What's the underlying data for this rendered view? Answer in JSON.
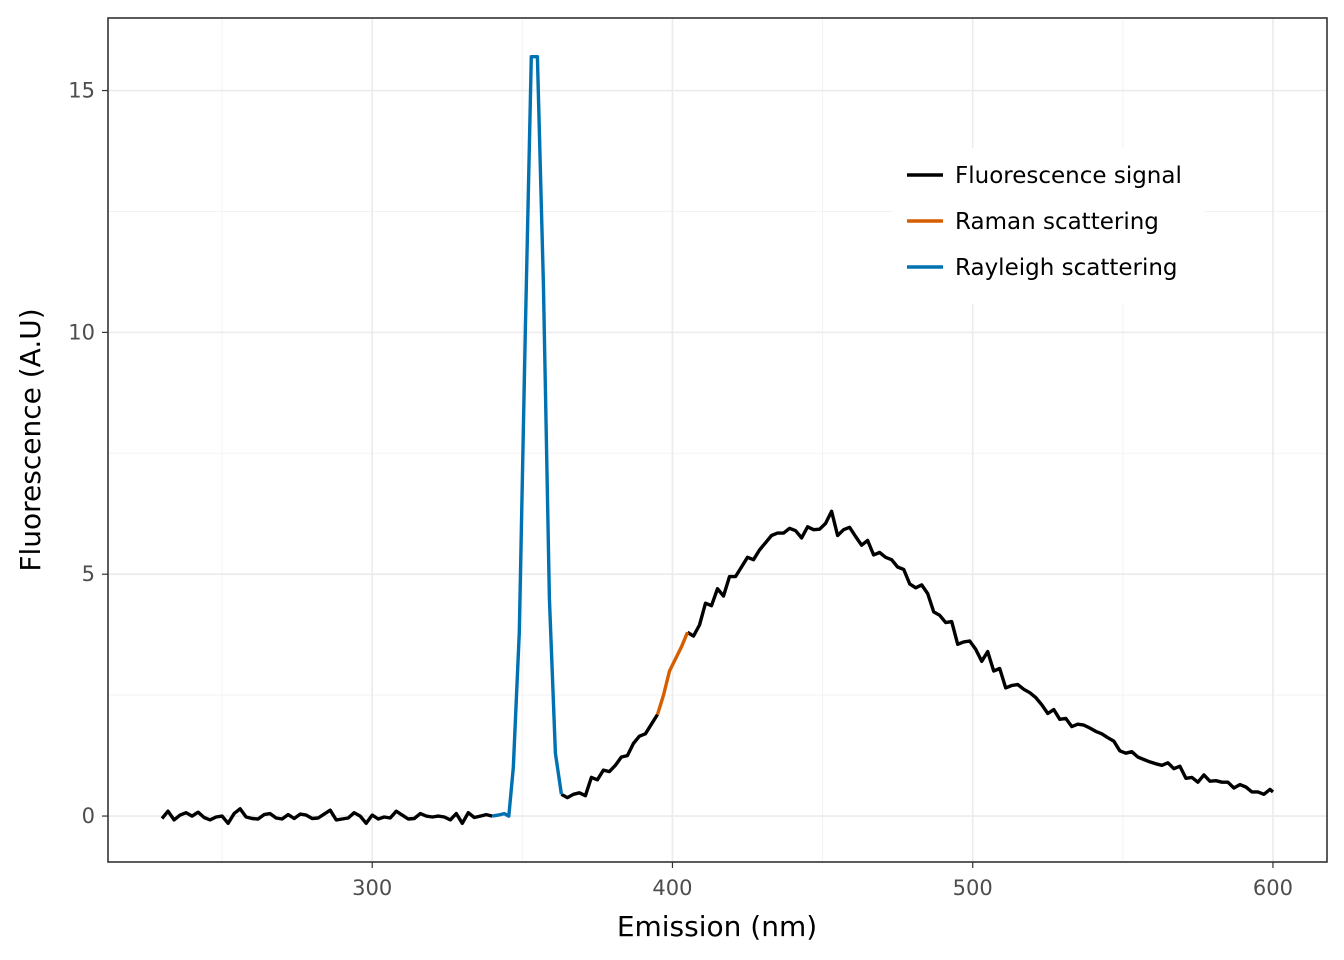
{
  "chart_data": {
    "type": "line",
    "title": "",
    "xlabel": "Emission (nm)",
    "ylabel": "Fluorescence (A.U)",
    "xlim": [
      212,
      618
    ],
    "ylim": [
      -0.95,
      16.5
    ],
    "x_ticks": [
      300,
      400,
      500,
      600
    ],
    "x_tick_labels": [
      "300",
      "400",
      "500",
      "600"
    ],
    "y_ticks": [
      0,
      5,
      10,
      15
    ],
    "y_tick_labels": [
      "0",
      "5",
      "10",
      "15"
    ],
    "grid": true,
    "legend_position": "top-right",
    "series": [
      {
        "name": "Fluorescence signal",
        "color": "#000000",
        "segments": [
          [
            [
              230,
              -0.05
            ],
            [
              232,
              0.1
            ],
            [
              234,
              -0.08
            ],
            [
              236,
              0.02
            ],
            [
              238,
              0.07
            ],
            [
              240,
              0.0
            ],
            [
              242,
              0.08
            ],
            [
              244,
              -0.03
            ],
            [
              246,
              -0.08
            ],
            [
              248,
              -0.02
            ],
            [
              250,
              0.0
            ],
            [
              252,
              -0.15
            ],
            [
              254,
              0.05
            ],
            [
              256,
              0.15
            ],
            [
              258,
              -0.02
            ],
            [
              260,
              -0.05
            ],
            [
              262,
              -0.06
            ],
            [
              264,
              0.03
            ],
            [
              266,
              0.05
            ],
            [
              268,
              -0.04
            ],
            [
              270,
              -0.06
            ],
            [
              272,
              0.03
            ],
            [
              274,
              -0.05
            ],
            [
              276,
              0.04
            ],
            [
              278,
              0.02
            ],
            [
              280,
              -0.05
            ],
            [
              282,
              -0.04
            ],
            [
              284,
              0.04
            ],
            [
              286,
              0.12
            ],
            [
              288,
              -0.08
            ],
            [
              290,
              -0.06
            ],
            [
              292,
              -0.04
            ],
            [
              294,
              0.07
            ],
            [
              296,
              0.0
            ],
            [
              298,
              -0.15
            ],
            [
              300,
              0.02
            ],
            [
              302,
              -0.06
            ],
            [
              304,
              -0.02
            ],
            [
              306,
              -0.04
            ],
            [
              308,
              0.1
            ],
            [
              310,
              0.02
            ],
            [
              312,
              -0.06
            ],
            [
              314,
              -0.05
            ],
            [
              316,
              0.05
            ],
            [
              318,
              0.0
            ],
            [
              320,
              -0.02
            ],
            [
              322,
              0.0
            ],
            [
              324,
              -0.02
            ],
            [
              326,
              -0.08
            ],
            [
              328,
              0.05
            ],
            [
              330,
              -0.15
            ],
            [
              332,
              0.07
            ],
            [
              334,
              -0.03
            ],
            [
              336,
              0.0
            ],
            [
              338,
              0.03
            ],
            [
              340,
              0.0
            ]
          ],
          [
            [
              363,
              0.45
            ],
            [
              365,
              0.38
            ],
            [
              367,
              0.45
            ],
            [
              369,
              0.48
            ],
            [
              371,
              0.42
            ],
            [
              373,
              0.8
            ],
            [
              375,
              0.75
            ],
            [
              377,
              0.95
            ],
            [
              379,
              0.92
            ],
            [
              381,
              1.05
            ],
            [
              383,
              1.22
            ],
            [
              385,
              1.25
            ],
            [
              387,
              1.5
            ],
            [
              389,
              1.65
            ],
            [
              391,
              1.7
            ],
            [
              393,
              1.9
            ],
            [
              395,
              2.1
            ]
          ],
          [
            [
              405,
              3.8
            ],
            [
              407,
              3.72
            ],
            [
              409,
              3.95
            ],
            [
              411,
              4.4
            ],
            [
              413,
              4.35
            ],
            [
              415,
              4.7
            ],
            [
              417,
              4.55
            ],
            [
              419,
              4.95
            ],
            [
              421,
              4.95
            ],
            [
              423,
              5.15
            ],
            [
              425,
              5.35
            ],
            [
              427,
              5.3
            ],
            [
              429,
              5.5
            ],
            [
              431,
              5.65
            ],
            [
              433,
              5.8
            ],
            [
              435,
              5.85
            ],
            [
              437,
              5.85
            ],
            [
              439,
              5.95
            ],
            [
              441,
              5.9
            ],
            [
              443,
              5.75
            ],
            [
              445,
              5.98
            ],
            [
              447,
              5.92
            ],
            [
              449,
              5.93
            ],
            [
              451,
              6.05
            ],
            [
              453,
              6.3
            ],
            [
              455,
              5.8
            ],
            [
              457,
              5.92
            ],
            [
              459,
              5.97
            ],
            [
              461,
              5.78
            ],
            [
              463,
              5.6
            ],
            [
              465,
              5.7
            ],
            [
              467,
              5.4
            ],
            [
              469,
              5.45
            ],
            [
              471,
              5.35
            ],
            [
              473,
              5.3
            ],
            [
              475,
              5.15
            ],
            [
              477,
              5.1
            ],
            [
              479,
              4.8
            ],
            [
              481,
              4.72
            ],
            [
              483,
              4.78
            ],
            [
              485,
              4.6
            ],
            [
              487,
              4.22
            ],
            [
              489,
              4.15
            ],
            [
              491,
              4.0
            ],
            [
              493,
              4.02
            ],
            [
              495,
              3.55
            ],
            [
              497,
              3.6
            ],
            [
              499,
              3.62
            ],
            [
              501,
              3.45
            ],
            [
              503,
              3.2
            ],
            [
              505,
              3.4
            ],
            [
              507,
              3.0
            ],
            [
              509,
              3.05
            ],
            [
              511,
              2.65
            ],
            [
              513,
              2.7
            ],
            [
              515,
              2.72
            ],
            [
              517,
              2.62
            ],
            [
              519,
              2.55
            ],
            [
              521,
              2.45
            ],
            [
              523,
              2.3
            ],
            [
              525,
              2.12
            ],
            [
              527,
              2.2
            ],
            [
              529,
              2.0
            ],
            [
              531,
              2.02
            ],
            [
              533,
              1.85
            ],
            [
              535,
              1.9
            ],
            [
              537,
              1.88
            ],
            [
              539,
              1.82
            ],
            [
              541,
              1.75
            ],
            [
              543,
              1.7
            ],
            [
              545,
              1.62
            ],
            [
              547,
              1.55
            ],
            [
              549,
              1.35
            ],
            [
              551,
              1.3
            ],
            [
              553,
              1.33
            ],
            [
              555,
              1.22
            ],
            [
              557,
              1.17
            ],
            [
              559,
              1.12
            ],
            [
              561,
              1.08
            ],
            [
              563,
              1.05
            ],
            [
              565,
              1.1
            ],
            [
              567,
              0.98
            ],
            [
              569,
              1.03
            ],
            [
              571,
              0.78
            ],
            [
              573,
              0.8
            ],
            [
              575,
              0.7
            ],
            [
              577,
              0.85
            ],
            [
              579,
              0.72
            ],
            [
              581,
              0.73
            ],
            [
              583,
              0.7
            ],
            [
              585,
              0.7
            ],
            [
              587,
              0.58
            ],
            [
              589,
              0.65
            ],
            [
              591,
              0.6
            ],
            [
              593,
              0.5
            ],
            [
              595,
              0.5
            ],
            [
              597,
              0.45
            ],
            [
              599,
              0.55
            ],
            [
              600,
              0.5
            ]
          ]
        ]
      },
      {
        "name": "Raman scattering",
        "color": "#d55e00",
        "segments": [
          [
            [
              395,
              2.1
            ],
            [
              397,
              2.5
            ],
            [
              399,
              3.0
            ],
            [
              401,
              3.25
            ],
            [
              403,
              3.5
            ],
            [
              405,
              3.8
            ]
          ]
        ]
      },
      {
        "name": "Rayleigh scattering",
        "color": "#0072b2",
        "segments": [
          [
            [
              340,
              0.0
            ],
            [
              342,
              0.02
            ],
            [
              344,
              0.05
            ],
            [
              345.5,
              0.0
            ],
            [
              347,
              1.0
            ],
            [
              349,
              3.8
            ],
            [
              351,
              10.0
            ],
            [
              353,
              15.7
            ],
            [
              355,
              15.7
            ],
            [
              357,
              11.0
            ],
            [
              359,
              4.5
            ],
            [
              361,
              1.3
            ],
            [
              363,
              0.45
            ]
          ]
        ]
      }
    ]
  }
}
